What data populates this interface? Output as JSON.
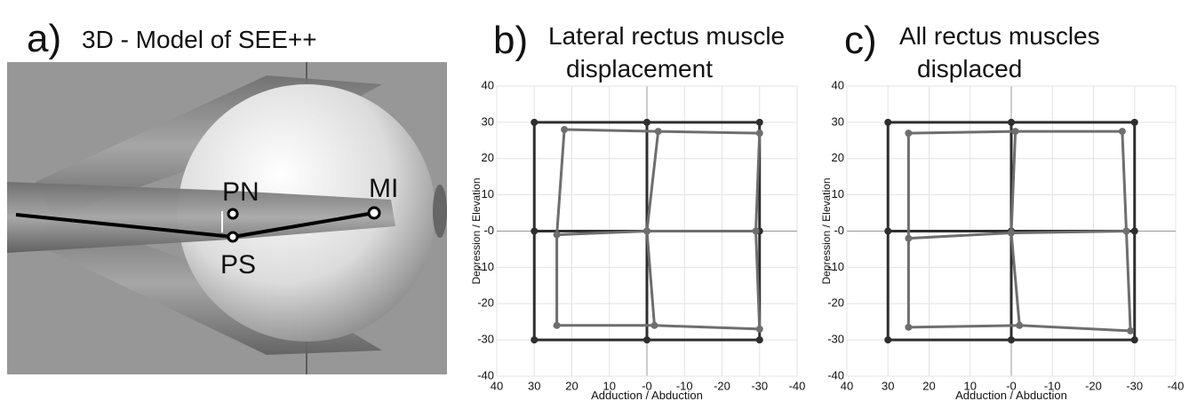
{
  "figure_a": {
    "label": "a)",
    "title": "3D - Model of SEE++",
    "points": [
      "PN",
      "MI",
      "PS"
    ]
  },
  "chart_data": [
    {
      "type": "hess",
      "label": "b)",
      "title": [
        "Lateral rectus muscle",
        "displacement"
      ],
      "xlabel": "Adduction   /   Abduction",
      "ylabel": "Depression  /  Elevation",
      "xlim": [
        40,
        -40
      ],
      "ylim": [
        -40,
        40
      ],
      "xticks": [
        40,
        30,
        20,
        10,
        {
          "value": 0,
          "label": "-0"
        },
        -10,
        -20,
        -30,
        -40
      ],
      "yticks": [
        40,
        30,
        20,
        10,
        {
          "value": 0,
          "label": "-0"
        },
        -10,
        -20,
        -30,
        -40
      ],
      "grid": true,
      "series": [
        {
          "color": "#2e2e2e",
          "x": [
            30,
            0,
            -30,
            30,
            0,
            -30,
            30,
            0,
            -30
          ],
          "values": [
            30,
            30,
            30,
            0,
            0,
            0,
            -30,
            -30,
            -30
          ]
        },
        {
          "color": "#6e6e6e",
          "x": [
            22,
            -3,
            -30,
            24,
            0,
            -29,
            24,
            -2,
            -30
          ],
          "values": [
            28,
            27.5,
            27,
            -1,
            0,
            0,
            -26,
            -26,
            -27
          ]
        }
      ]
    },
    {
      "type": "hess",
      "label": "c)",
      "title": [
        "All rectus muscles",
        "displaced"
      ],
      "xlabel": "Adduction   /   Abduction",
      "ylabel": "Depression  /  Elevation",
      "xlim": [
        40,
        -40
      ],
      "ylim": [
        -40,
        40
      ],
      "xticks": [
        40,
        30,
        20,
        10,
        {
          "value": 0,
          "label": "-0"
        },
        -10,
        -20,
        -30,
        -40
      ],
      "yticks": [
        40,
        30,
        20,
        10,
        {
          "value": 0,
          "label": "-0"
        },
        -10,
        -20,
        -30,
        -40
      ],
      "grid": true,
      "series": [
        {
          "color": "#2e2e2e",
          "x": [
            30,
            0,
            -30,
            30,
            0,
            -30,
            30,
            0,
            -30
          ],
          "values": [
            30,
            30,
            30,
            0,
            0,
            0,
            -30,
            -30,
            -30
          ]
        },
        {
          "color": "#6e6e6e",
          "x": [
            25,
            -1,
            -27,
            25,
            0,
            -28,
            25,
            -2,
            -29
          ],
          "values": [
            27,
            27.5,
            27.5,
            -2,
            -0.5,
            0,
            -26.5,
            -26,
            -27.5
          ]
        }
      ]
    }
  ]
}
